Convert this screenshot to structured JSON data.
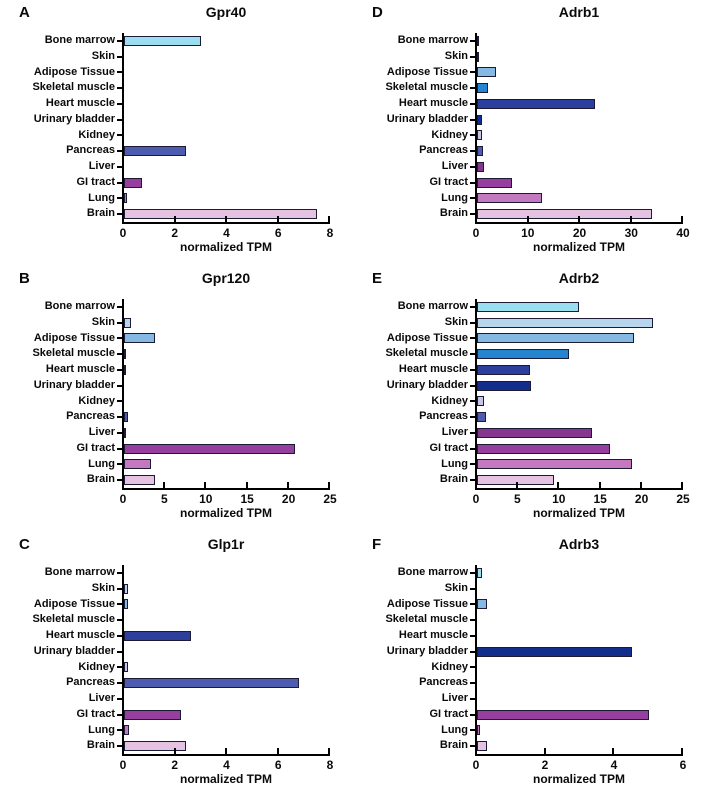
{
  "figure_xlabel": "normalized TPM",
  "categories": [
    "Bone marrow",
    "Skin",
    "Adipose Tissue",
    "Skeletal muscle",
    "Heart muscle",
    "Urinary bladder",
    "Kidney",
    "Pancreas",
    "Liver",
    "GI tract",
    "Lung",
    "Brain"
  ],
  "tissue_colors": {
    "Bone marrow": "#9bdef0",
    "Skin": "#b8d5ee",
    "Adipose Tissue": "#85b8e3",
    "Skeletal muscle": "#2584d0",
    "Heart muscle": "#2d3f9c",
    "Urinary bladder": "#132d8d",
    "Kidney": "#c7c5e5",
    "Pancreas": "#4d5cae",
    "Liver": "#86368f",
    "GI tract": "#963f9e",
    "Lung": "#c478bf",
    "Brain": "#e6c2e2"
  },
  "bar_outline_color": "#1b1b35",
  "axis_color": "#000000",
  "chart_data": [
    {
      "type": "bar",
      "orientation": "horizontal",
      "panel": "A",
      "title": "Gpr40",
      "xlabel": "normalized TPM",
      "xlim": [
        0,
        8
      ],
      "xticks": [
        0,
        2,
        4,
        6,
        8
      ],
      "grid": false,
      "legend": "none",
      "categories": [
        "Bone marrow",
        "Skin",
        "Adipose Tissue",
        "Skeletal muscle",
        "Heart muscle",
        "Urinary bladder",
        "Kidney",
        "Pancreas",
        "Liver",
        "GI tract",
        "Lung",
        "Brain"
      ],
      "values": [
        3.0,
        0,
        0,
        0,
        0,
        0,
        0,
        2.4,
        0,
        0.7,
        0.1,
        7.5
      ]
    },
    {
      "type": "bar",
      "orientation": "horizontal",
      "panel": "D",
      "title": "Adrb1",
      "xlabel": "normalized TPM",
      "xlim": [
        0,
        40
      ],
      "xticks": [
        0,
        10,
        20,
        30,
        40
      ],
      "grid": false,
      "legend": "none",
      "categories": [
        "Bone marrow",
        "Skin",
        "Adipose Tissue",
        "Skeletal muscle",
        "Heart muscle",
        "Urinary bladder",
        "Kidney",
        "Pancreas",
        "Liver",
        "GI tract",
        "Lung",
        "Brain"
      ],
      "values": [
        0.4,
        0.3,
        3.6,
        2.1,
        23,
        0.9,
        1.0,
        1.2,
        1.4,
        6.8,
        12.6,
        34
      ]
    },
    {
      "type": "bar",
      "orientation": "horizontal",
      "panel": "B",
      "title": "Gpr120",
      "xlabel": "normalized TPM",
      "xlim": [
        0,
        25
      ],
      "xticks": [
        0,
        5,
        10,
        15,
        20,
        25
      ],
      "grid": false,
      "legend": "none",
      "categories": [
        "Bone marrow",
        "Skin",
        "Adipose Tissue",
        "Skeletal muscle",
        "Heart muscle",
        "Urinary bladder",
        "Kidney",
        "Pancreas",
        "Liver",
        "GI tract",
        "Lung",
        "Brain"
      ],
      "values": [
        0,
        0.8,
        3.8,
        0.3,
        0.3,
        0,
        0,
        0.5,
        0.3,
        20.7,
        3.3,
        3.8
      ]
    },
    {
      "type": "bar",
      "orientation": "horizontal",
      "panel": "E",
      "title": "Adrb2",
      "xlabel": "normalized TPM",
      "xlim": [
        0,
        25
      ],
      "xticks": [
        0,
        5,
        10,
        15,
        20,
        25
      ],
      "grid": false,
      "legend": "none",
      "categories": [
        "Bone marrow",
        "Skin",
        "Adipose Tissue",
        "Skeletal muscle",
        "Heart muscle",
        "Urinary bladder",
        "Kidney",
        "Pancreas",
        "Liver",
        "GI tract",
        "Lung",
        "Brain"
      ],
      "values": [
        12.4,
        21.3,
        19.0,
        11.2,
        6.4,
        6.6,
        0.9,
        1.1,
        13.9,
        16.2,
        18.8,
        9.4
      ]
    },
    {
      "type": "bar",
      "orientation": "horizontal",
      "panel": "C",
      "title": "Glp1r",
      "xlabel": "normalized TPM",
      "xlim": [
        0,
        8
      ],
      "xticks": [
        0,
        2,
        4,
        6,
        8
      ],
      "grid": false,
      "legend": "none",
      "categories": [
        "Bone marrow",
        "Skin",
        "Adipose Tissue",
        "Skeletal muscle",
        "Heart muscle",
        "Urinary bladder",
        "Kidney",
        "Pancreas",
        "Liver",
        "GI tract",
        "Lung",
        "Brain"
      ],
      "values": [
        0,
        0.15,
        0.15,
        0,
        2.6,
        0,
        0.15,
        6.8,
        0,
        2.2,
        0.2,
        2.4
      ]
    },
    {
      "type": "bar",
      "orientation": "horizontal",
      "panel": "F",
      "title": "Adrb3",
      "xlabel": "normalized TPM",
      "xlim": [
        0,
        6
      ],
      "xticks": [
        0,
        2,
        4,
        6
      ],
      "grid": false,
      "legend": "none",
      "categories": [
        "Bone marrow",
        "Skin",
        "Adipose Tissue",
        "Skeletal muscle",
        "Heart muscle",
        "Urinary bladder",
        "Kidney",
        "Pancreas",
        "Liver",
        "GI tract",
        "Lung",
        "Brain"
      ],
      "values": [
        0.15,
        0,
        0.3,
        0,
        0,
        4.5,
        0,
        0,
        0,
        5.0,
        0.1,
        0.3
      ]
    }
  ]
}
